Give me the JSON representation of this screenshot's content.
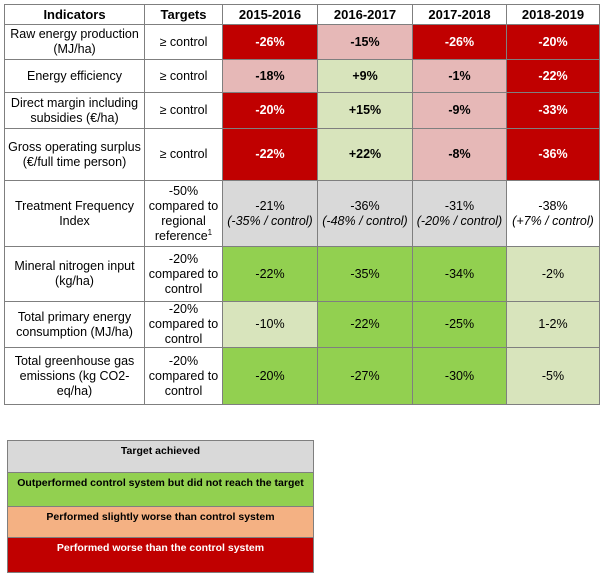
{
  "header": {
    "indicators": "Indicators",
    "targets": "Targets",
    "years": [
      "2015-2016",
      "2016-2017",
      "2017-2018",
      "2018-2019"
    ]
  },
  "colors": {
    "worse": "#c00000",
    "slightly_worse": "#e6b8b7",
    "outperformed_control": "#d8e4bc",
    "target_achieved": "#92d050",
    "neutral": "#d9d9d9",
    "legend_target_achieved": "#d9d9d9",
    "legend_outperformed": "#92d050",
    "legend_slightly_worse": "#f4b183",
    "legend_worse": "#c00000"
  },
  "rows": [
    {
      "indicator": "Raw energy production (MJ/ha)",
      "target": "≥ control",
      "values": [
        "-26%",
        "-15%",
        "-26%",
        "-20%"
      ]
    },
    {
      "indicator": "Energy efficiency",
      "target": "≥ control",
      "values": [
        "-18%",
        "+9%",
        "-1%",
        "-22%"
      ]
    },
    {
      "indicator": "Direct margin including subsidies (€/ha)",
      "target": "≥ control",
      "values": [
        "-20%",
        "+15%",
        "-9%",
        "-33%"
      ]
    },
    {
      "indicator": "Gross operating surplus (€/full time person)",
      "target": "≥ control",
      "values": [
        "-22%",
        "+22%",
        "-8%",
        "-36%"
      ]
    },
    {
      "indicator": "Treatment Frequency Index",
      "target": "-50% compared to regional reference",
      "target_sup": "1",
      "values": [
        "-21%",
        "-36%",
        "-31%",
        "-38%"
      ],
      "subvalues": [
        "(-35% / control)",
        "(-48% / control)",
        "(-20% / control)",
        "(+7% / control)"
      ]
    },
    {
      "indicator": "Mineral nitrogen input (kg/ha)",
      "target": "-20% compared to control",
      "values": [
        "-22%",
        "-35%",
        "-34%",
        "-2%"
      ]
    },
    {
      "indicator": "Total primary energy consumption (MJ/ha)",
      "target": "-20% compared to control",
      "values": [
        "-10%",
        "-22%",
        "-25%",
        "1-2%"
      ]
    },
    {
      "indicator": "Total greenhouse gas emissions (kg CO2-eq/ha)",
      "target": "-20% compared to control",
      "values": [
        "-20%",
        "-27%",
        "-30%",
        "-5%"
      ]
    }
  ],
  "legend": [
    "Target achieved",
    "Outperformed control system but did not reach the target",
    "Performed slightly worse than control system",
    "Performed worse than the control system"
  ]
}
